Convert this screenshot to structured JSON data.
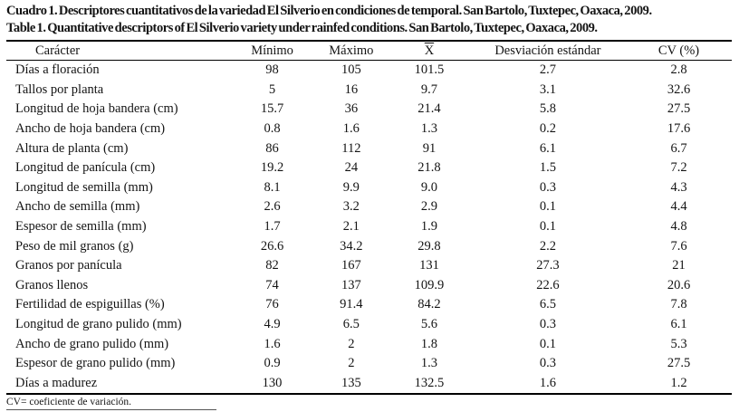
{
  "caption": {
    "spanish": "Cuadro 1. Descriptores cuantitativos de la variedad El Silverio en condiciones de temporal. San Bartolo, Tuxtepec, Oaxaca, 2009.",
    "english": "Table 1. Quantitative descriptors of El Silverio variety under rainfed conditions. San Bartolo, Tuxtepec, Oaxaca, 2009."
  },
  "table": {
    "columns": [
      "Carácter",
      "Mínimo",
      "Máximo",
      "X",
      "Desviación estándar",
      "CV (%)"
    ],
    "mean_column_note": "X rendered with overline (sample mean symbol)",
    "rows": [
      {
        "label": "Días a floración",
        "values": [
          "98",
          "105",
          "101.5",
          "2.7",
          "2.8"
        ]
      },
      {
        "label": "Tallos por planta",
        "values": [
          "5",
          "16",
          "9.7",
          "3.1",
          "32.6"
        ]
      },
      {
        "label": "Longitud de hoja bandera (cm)",
        "values": [
          "15.7",
          "36",
          "21.4",
          "5.8",
          "27.5"
        ]
      },
      {
        "label": "Ancho de hoja bandera (cm)",
        "values": [
          "0.8",
          "1.6",
          "1.3",
          "0.2",
          "17.6"
        ]
      },
      {
        "label": "Altura de planta (cm)",
        "values": [
          "86",
          "112",
          "91",
          "6.1",
          "6.7"
        ]
      },
      {
        "label": "Longitud de panícula (cm)",
        "values": [
          "19.2",
          "24",
          "21.8",
          "1.5",
          "7.2"
        ]
      },
      {
        "label": "Longitud de semilla (mm)",
        "values": [
          "8.1",
          "9.9",
          "9.0",
          "0.3",
          "4.3"
        ]
      },
      {
        "label": "Ancho de semilla (mm)",
        "values": [
          "2.6",
          "3.2",
          "2.9",
          "0.1",
          "4.4"
        ]
      },
      {
        "label": "Espesor de semilla (mm)",
        "values": [
          "1.7",
          "2.1",
          "1.9",
          "0.1",
          "4.8"
        ]
      },
      {
        "label": "Peso de mil granos (g)",
        "values": [
          "26.6",
          "34.2",
          "29.8",
          "2.2",
          "7.6"
        ]
      },
      {
        "label": "Granos por panícula",
        "values": [
          "82",
          "167",
          "131",
          "27.3",
          "21"
        ]
      },
      {
        "label": "Granos llenos",
        "values": [
          "74",
          "137",
          "109.9",
          "22.6",
          "20.6"
        ]
      },
      {
        "label": "Fertilidad de espiguillas (%)",
        "values": [
          "76",
          "91.4",
          "84.2",
          "6.5",
          "7.8"
        ]
      },
      {
        "label": "Longitud de grano pulido (mm)",
        "values": [
          "4.9",
          "6.5",
          "5.6",
          "0.3",
          "6.1"
        ]
      },
      {
        "label": "Ancho de grano pulido (mm)",
        "values": [
          "1.6",
          "2",
          "1.8",
          "0.1",
          "5.3"
        ]
      },
      {
        "label": "Espesor de grano pulido (mm)",
        "values": [
          "0.9",
          "2",
          "1.3",
          "0.3",
          "27.5"
        ]
      },
      {
        "label": "Días a madurez",
        "values": [
          "130",
          "135",
          "132.5",
          "1.6",
          "1.2"
        ]
      }
    ]
  },
  "footnote": "CV= coeficiente de variación."
}
